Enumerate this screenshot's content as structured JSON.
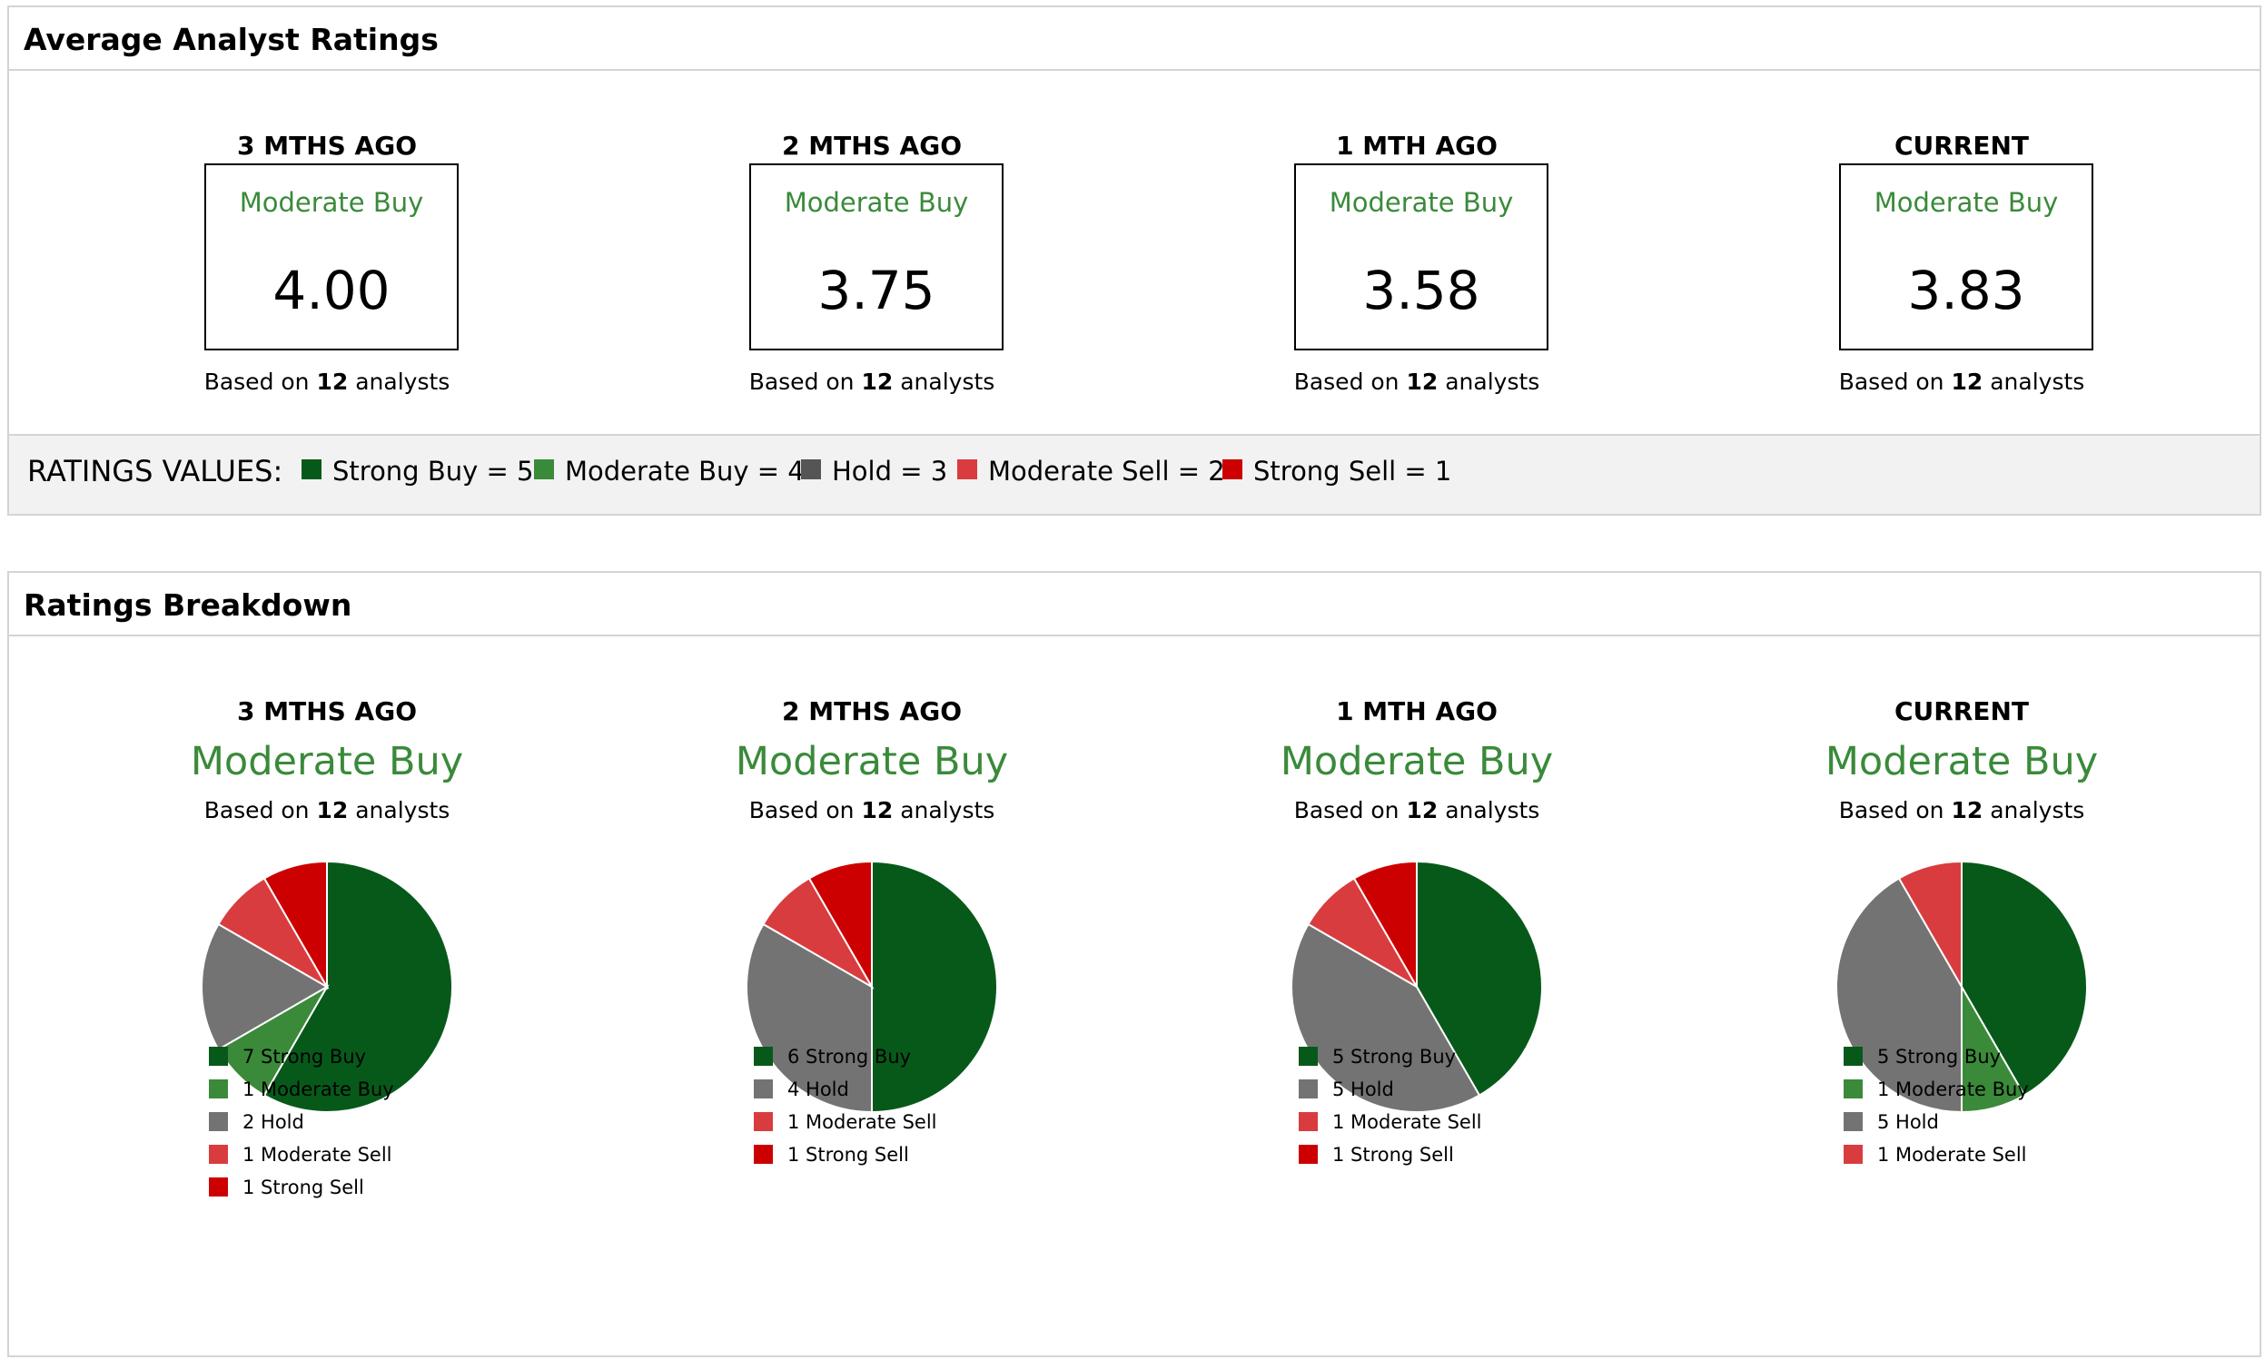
{
  "colors": {
    "strong_buy": "#07591a",
    "moderate_buy": "#3a8a3a",
    "hold": "#737373",
    "moderate_sell": "#d93c3f",
    "strong_sell": "#cc0000"
  },
  "average": {
    "title": "Average Analyst Ratings",
    "columns": [
      {
        "period": "3 MTHS AGO",
        "label": "Moderate Buy",
        "score": "4.00",
        "based_prefix": "Based on",
        "count": "12",
        "based_suffix": "analysts"
      },
      {
        "period": "2 MTHS AGO",
        "label": "Moderate Buy",
        "score": "3.75",
        "based_prefix": "Based on",
        "count": "12",
        "based_suffix": "analysts"
      },
      {
        "period": "1 MTH AGO",
        "label": "Moderate Buy",
        "score": "3.58",
        "based_prefix": "Based on",
        "count": "12",
        "based_suffix": "analysts"
      },
      {
        "period": "CURRENT",
        "label": "Moderate Buy",
        "score": "3.83",
        "based_prefix": "Based on",
        "count": "12",
        "based_suffix": "analysts"
      }
    ],
    "ratings_values": {
      "title": "RATINGS VALUES:",
      "items": [
        {
          "label": "Strong Buy = 5",
          "color": "#07591a"
        },
        {
          "label": "Moderate Buy = 4",
          "color": "#3a8a3a"
        },
        {
          "label": "Hold = 3",
          "color": "#555555"
        },
        {
          "label": "Moderate Sell = 2",
          "color": "#d93c3f"
        },
        {
          "label": "Strong Sell = 1",
          "color": "#cc0000"
        }
      ]
    }
  },
  "breakdown": {
    "title": "Ratings Breakdown",
    "columns": [
      {
        "period": "3 MTHS AGO",
        "label": "Moderate Buy",
        "based_prefix": "Based on",
        "count": "12",
        "based_suffix": "analysts",
        "legend": [
          "7 Strong Buy",
          "1 Moderate Buy",
          "2 Hold",
          "1 Moderate Sell",
          "1 Strong Sell"
        ]
      },
      {
        "period": "2 MTHS AGO",
        "label": "Moderate Buy",
        "based_prefix": "Based on",
        "count": "12",
        "based_suffix": "analysts",
        "legend": [
          "6 Strong Buy",
          "4 Hold",
          "1 Moderate Sell",
          "1 Strong Sell"
        ]
      },
      {
        "period": "1 MTH AGO",
        "label": "Moderate Buy",
        "based_prefix": "Based on",
        "count": "12",
        "based_suffix": "analysts",
        "legend": [
          "5 Strong Buy",
          "5 Hold",
          "1 Moderate Sell",
          "1 Strong Sell"
        ]
      },
      {
        "period": "CURRENT",
        "label": "Moderate Buy",
        "based_prefix": "Based on",
        "count": "12",
        "based_suffix": "analysts",
        "legend": [
          "5 Strong Buy",
          "1 Moderate Buy",
          "5 Hold",
          "1 Moderate Sell"
        ]
      }
    ]
  },
  "chart_data": [
    {
      "type": "pie",
      "title": "3 MTHS AGO",
      "categories": [
        "Strong Buy",
        "Moderate Buy",
        "Hold",
        "Moderate Sell",
        "Strong Sell"
      ],
      "values": [
        7,
        1,
        2,
        1,
        1
      ]
    },
    {
      "type": "pie",
      "title": "2 MTHS AGO",
      "categories": [
        "Strong Buy",
        "Hold",
        "Moderate Sell",
        "Strong Sell"
      ],
      "values": [
        6,
        4,
        1,
        1
      ]
    },
    {
      "type": "pie",
      "title": "1 MTH AGO",
      "categories": [
        "Strong Buy",
        "Hold",
        "Moderate Sell",
        "Strong Sell"
      ],
      "values": [
        5,
        5,
        1,
        1
      ]
    },
    {
      "type": "pie",
      "title": "CURRENT",
      "categories": [
        "Strong Buy",
        "Moderate Buy",
        "Hold",
        "Moderate Sell"
      ],
      "values": [
        5,
        1,
        5,
        1
      ]
    }
  ]
}
